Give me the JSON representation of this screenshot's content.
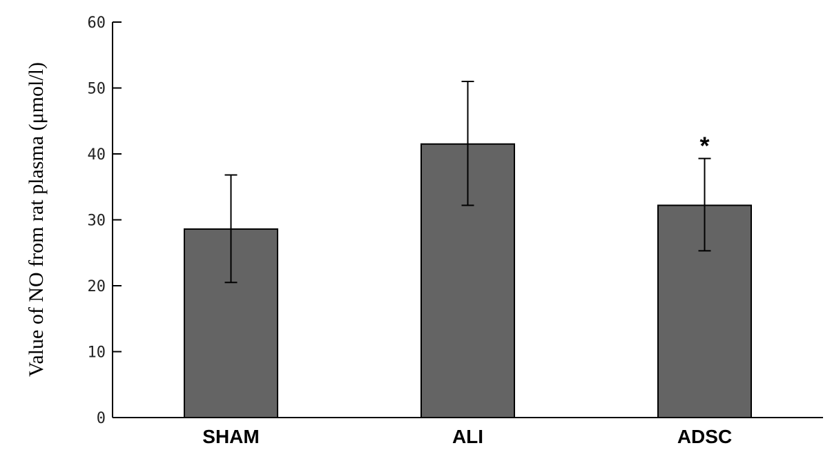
{
  "chart_data": {
    "type": "bar",
    "title": "",
    "xlabel": "",
    "ylabel": "Value of NO from rat plasma (μmol/l)",
    "ylim": [
      0,
      60
    ],
    "yticks": [
      0,
      10,
      20,
      30,
      40,
      50,
      60
    ],
    "categories": [
      "SHAM",
      "ALI",
      "ADSC"
    ],
    "values": [
      28.6,
      41.5,
      32.2
    ],
    "error_low": [
      20.5,
      32.2,
      25.3
    ],
    "error_high": [
      36.8,
      51.0,
      39.3
    ],
    "annotations": [
      {
        "category": "ADSC",
        "text": "*"
      }
    ],
    "grid": false,
    "legend": "none",
    "bar_color": "#646464",
    "bar_edge_color": "#000000"
  }
}
